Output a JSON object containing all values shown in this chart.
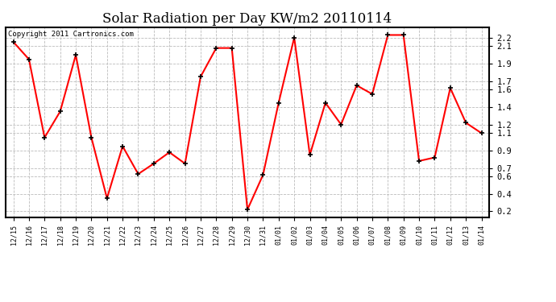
{
  "title": "Solar Radiation per Day KW/m2 20110114",
  "copyright": "Copyright 2011 Cartronics.com",
  "labels": [
    "12/15",
    "12/16",
    "12/17",
    "12/18",
    "12/19",
    "12/20",
    "12/21",
    "12/22",
    "12/23",
    "12/24",
    "12/25",
    "12/26",
    "12/27",
    "12/28",
    "12/29",
    "12/30",
    "12/31",
    "01/01",
    "01/02",
    "01/03",
    "01/04",
    "01/05",
    "01/06",
    "01/07",
    "01/08",
    "01/09",
    "01/10",
    "01/11",
    "01/12",
    "01/13",
    "01/14"
  ],
  "values": [
    2.15,
    1.95,
    1.05,
    1.35,
    2.0,
    1.05,
    0.35,
    0.95,
    0.63,
    0.75,
    0.88,
    0.75,
    1.75,
    2.08,
    2.08,
    0.22,
    0.62,
    1.45,
    2.2,
    0.85,
    1.45,
    1.2,
    1.65,
    1.55,
    2.23,
    2.23,
    0.78,
    0.82,
    1.62,
    1.22,
    1.1
  ],
  "line_color": "#ff0000",
  "marker_color": "#000000",
  "bg_color": "#ffffff",
  "grid_color": "#bbbbbb",
  "ylim": [
    0.13,
    2.32
  ],
  "ytick_positions": [
    0.2,
    0.4,
    0.6,
    0.7,
    0.9,
    1.1,
    1.2,
    1.4,
    1.6,
    1.7,
    1.9,
    2.1,
    2.2
  ],
  "ytick_labels": [
    "0.2",
    "0.4",
    "0.6",
    "0.7",
    "0.9",
    "1.1",
    "1.2",
    "1.4",
    "1.6",
    "1.7",
    "1.9",
    "2.1",
    "2.2"
  ],
  "title_fontsize": 12,
  "copyright_fontsize": 6.5,
  "tick_fontsize": 7.5,
  "xtick_fontsize": 6
}
